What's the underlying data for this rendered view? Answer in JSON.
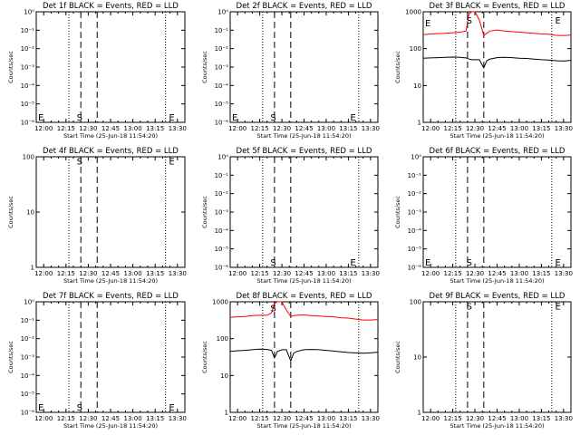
{
  "figure": {
    "colors": {
      "events": "#000000",
      "lld": "#ff0000",
      "axes": "#000000",
      "background": "#ffffff"
    },
    "xlabel": "Start Time (25-Jun-18 11:54:20)",
    "ylabel": "Counts/sec",
    "x_tick_labels": [
      "12:00",
      "12:15",
      "12:30",
      "12:45",
      "13:00",
      "13:15",
      "13:30"
    ],
    "x_range_minutes": [
      -5,
      95
    ],
    "dotted_lines_min": [
      17,
      82
    ],
    "dashed_lines_min": [
      25,
      36
    ],
    "marker_labels": {
      "start": "S",
      "end": "E"
    }
  },
  "chart_data": [
    {
      "type": "line",
      "title": "Det 1f BLACK = Events, RED = LLD",
      "yscale": "log",
      "ylim": [
        1,
        1e-06
      ],
      "ytick_labels": [
        "10⁻⁶",
        "10⁻⁵",
        "10⁻⁴",
        "10⁻³",
        "10⁻²",
        "10⁻¹",
        "10⁰"
      ],
      "markers": [
        {
          "label": "E",
          "x_min": -5,
          "y": 0.5
        },
        {
          "label": "S",
          "x_min": 21,
          "y": 0.5
        },
        {
          "label": "E",
          "x_min": 83,
          "y": 0.5
        }
      ],
      "series": []
    },
    {
      "type": "line",
      "title": "Det 2f BLACK = Events, RED = LLD",
      "yscale": "log",
      "ylim": [
        1,
        1e-06
      ],
      "ytick_labels": [
        "10⁻⁶",
        "10⁻⁵",
        "10⁻⁴",
        "10⁻³",
        "10⁻²",
        "10⁻¹",
        "10⁰"
      ],
      "markers": [
        {
          "label": "E",
          "x_min": -5,
          "y": 0.5
        },
        {
          "label": "S",
          "x_min": 21,
          "y": 0.5
        },
        {
          "label": "E",
          "x_min": 75,
          "y": 0.5
        }
      ],
      "series": []
    },
    {
      "type": "line",
      "title": "Det 3f BLACK = Events, RED = LLD",
      "yscale": "log",
      "ylim": [
        1,
        1000
      ],
      "ytick_labels": [
        "1",
        "10",
        "100",
        "1000"
      ],
      "markers": [
        {
          "label": "E",
          "x_min": -5,
          "y": 500
        },
        {
          "label": "S",
          "x_min": 23,
          "y": 600
        },
        {
          "label": "E",
          "x_min": 83,
          "y": 600
        }
      ],
      "series": [
        {
          "color": "#ff0000",
          "x": [
            -5,
            0,
            5,
            10,
            15,
            20,
            24,
            26,
            28,
            30,
            33,
            36,
            38,
            40,
            45,
            50,
            55,
            60,
            65,
            70,
            75,
            80,
            85,
            90,
            95
          ],
          "y": [
            240,
            250,
            255,
            260,
            270,
            280,
            300,
            900,
            1000,
            1000,
            600,
            230,
            260,
            300,
            320,
            300,
            290,
            280,
            270,
            260,
            250,
            245,
            230,
            225,
            235
          ]
        },
        {
          "color": "#000000",
          "x": [
            -5,
            0,
            5,
            10,
            15,
            20,
            24,
            26,
            28,
            30,
            33,
            36,
            38,
            40,
            45,
            50,
            55,
            60,
            65,
            70,
            75,
            80,
            85,
            90,
            95
          ],
          "y": [
            55,
            56,
            57,
            58,
            59,
            58,
            56,
            52,
            50,
            50,
            50,
            30,
            47,
            52,
            57,
            58,
            57,
            55,
            54,
            52,
            50,
            49,
            47,
            46,
            48
          ]
        }
      ]
    },
    {
      "type": "line",
      "title": "Det 4f BLACK = Events, RED = LLD",
      "yscale": "log",
      "ylim": [
        1,
        100
      ],
      "ytick_labels": [
        "1",
        "10",
        "100"
      ],
      "markers": [
        {
          "label": "S",
          "x_min": 21,
          "y": 85
        },
        {
          "label": "E",
          "x_min": 83,
          "y": 85
        }
      ],
      "series": []
    },
    {
      "type": "line",
      "title": "Det 5f BLACK = Events, RED = LLD",
      "yscale": "log",
      "ylim": [
        1,
        1e-06
      ],
      "ytick_labels": [
        "10⁻⁶",
        "10⁻⁵",
        "10⁻⁴",
        "10⁻³",
        "10⁻²",
        "10⁻¹",
        "10⁰"
      ],
      "markers": [
        {
          "label": "S",
          "x_min": 21,
          "y": 0.5
        },
        {
          "label": "E",
          "x_min": 75,
          "y": 0.5
        }
      ],
      "series": []
    },
    {
      "type": "line",
      "title": "Det 6f BLACK = Events, RED = LLD",
      "yscale": "log",
      "ylim": [
        1,
        1e-06
      ],
      "ytick_labels": [
        "10⁻⁶",
        "10⁻⁵",
        "10⁻⁴",
        "10⁻³",
        "10⁻²",
        "10⁻¹",
        "10⁰"
      ],
      "markers": [
        {
          "label": "E",
          "x_min": -5,
          "y": 0.5
        },
        {
          "label": "S",
          "x_min": 23,
          "y": 0.5
        },
        {
          "label": "E",
          "x_min": 83,
          "y": 0.5
        }
      ],
      "series": []
    },
    {
      "type": "line",
      "title": "Det 7f BLACK = Events, RED = LLD",
      "yscale": "log",
      "ylim": [
        1,
        1e-06
      ],
      "ytick_labels": [
        "10⁻⁶",
        "10⁻⁵",
        "10⁻⁴",
        "10⁻³",
        "10⁻²",
        "10⁻¹",
        "10⁰"
      ],
      "markers": [
        {
          "label": "E",
          "x_min": -5,
          "y": 0.5
        },
        {
          "label": "S",
          "x_min": 21,
          "y": 0.5
        },
        {
          "label": "E",
          "x_min": 83,
          "y": 0.5
        }
      ],
      "series": []
    },
    {
      "type": "line",
      "title": "Det 8f BLACK = Events, RED = LLD",
      "yscale": "log",
      "ylim": [
        1,
        1000
      ],
      "ytick_labels": [
        "1",
        "10",
        "100",
        "1000"
      ],
      "markers": [
        {
          "label": "S",
          "x_min": 21,
          "y": 700
        }
      ],
      "series": [
        {
          "color": "#ff0000",
          "x": [
            -5,
            0,
            5,
            10,
            15,
            20,
            23,
            25,
            27,
            30,
            33,
            36,
            38,
            40,
            45,
            50,
            55,
            60,
            65,
            70,
            75,
            80,
            85,
            90,
            95
          ],
          "y": [
            380,
            390,
            400,
            420,
            430,
            430,
            500,
            900,
            1000,
            1000,
            600,
            400,
            420,
            430,
            440,
            420,
            410,
            400,
            390,
            370,
            360,
            340,
            320,
            320,
            330
          ]
        },
        {
          "color": "#000000",
          "x": [
            -5,
            0,
            5,
            10,
            15,
            20,
            23,
            25,
            27,
            30,
            33,
            36,
            38,
            40,
            45,
            50,
            55,
            60,
            65,
            70,
            75,
            80,
            85,
            90,
            95
          ],
          "y": [
            45,
            47,
            48,
            50,
            52,
            51,
            48,
            30,
            45,
            50,
            50,
            25,
            40,
            45,
            50,
            51,
            50,
            48,
            46,
            44,
            42,
            41,
            40,
            41,
            43
          ]
        }
      ]
    },
    {
      "type": "line",
      "title": "Det 9f BLACK = Events, RED = LLD",
      "yscale": "log",
      "ylim": [
        1,
        100
      ],
      "ytick_labels": [
        "1",
        "10",
        "100"
      ],
      "markers": [
        {
          "label": "S",
          "x_min": 23,
          "y": 85
        },
        {
          "label": "E",
          "x_min": 83,
          "y": 85
        }
      ],
      "series": []
    }
  ]
}
